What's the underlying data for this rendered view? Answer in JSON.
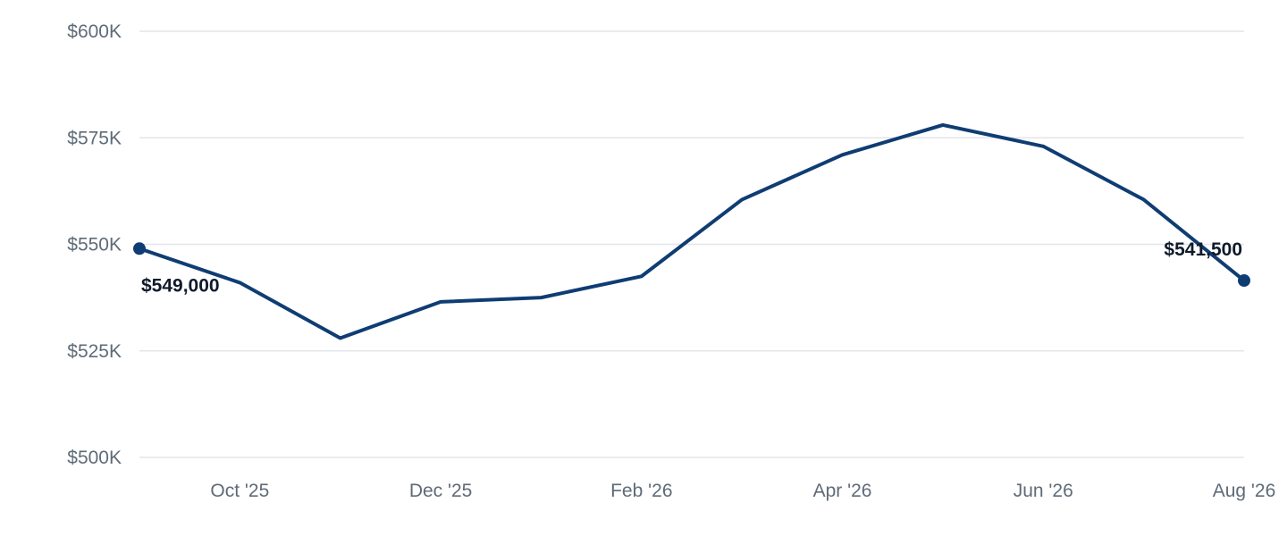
{
  "chart_data": {
    "type": "line",
    "x": [
      "Sep '25",
      "Oct '25",
      "Nov '25",
      "Dec '25",
      "Jan '26",
      "Feb '26",
      "Mar '26",
      "Apr '26",
      "May '26",
      "Jun '26",
      "Jul '26",
      "Aug '26"
    ],
    "x_tick_labels": [
      "Oct '25",
      "Dec '25",
      "Feb '26",
      "Apr '26",
      "Jun '26",
      "Aug '26"
    ],
    "series": [
      {
        "values": [
          549000,
          541000,
          528000,
          536500,
          537500,
          542500,
          560500,
          571000,
          578000,
          573000,
          560500,
          541500
        ]
      }
    ],
    "point_labels": {
      "first": "$549,000",
      "last": "$541,500"
    },
    "ylim": [
      500000,
      600000
    ],
    "y_ticks": [
      500000,
      525000,
      550000,
      575000,
      600000
    ],
    "y_tick_labels": [
      "$500K",
      "$525K",
      "$550K",
      "$575K",
      "$600K"
    ],
    "title": "",
    "xlabel": "",
    "ylabel": "",
    "grid": true,
    "legend": "none",
    "colors": {
      "line": "#0f3d73",
      "grid": "#e3e6ea",
      "tick_text": "#5f6b78",
      "label_text": "#0f1a2b"
    }
  }
}
